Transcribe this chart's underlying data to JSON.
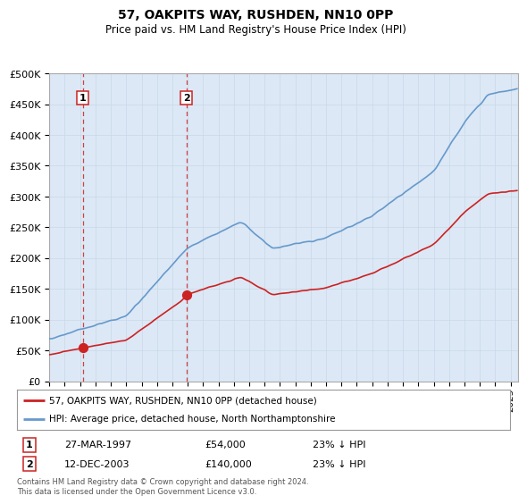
{
  "title": "57, OAKPITS WAY, RUSHDEN, NN10 0PP",
  "subtitle": "Price paid vs. HM Land Registry's House Price Index (HPI)",
  "legend_line1": "57, OAKPITS WAY, RUSHDEN, NN10 0PP (detached house)",
  "legend_line2": "HPI: Average price, detached house, North Northamptonshire",
  "footnote": "Contains HM Land Registry data © Crown copyright and database right 2024.\nThis data is licensed under the Open Government Licence v3.0.",
  "transaction1_date": "27-MAR-1997",
  "transaction1_price": 54000,
  "transaction1_label": "23% ↓ HPI",
  "transaction2_date": "12-DEC-2003",
  "transaction2_price": 140000,
  "transaction2_label": "23% ↓ HPI",
  "hpi_color": "#6699cc",
  "price_color": "#cc2222",
  "background_color": "#dce8f5",
  "plot_bg_color": "#ffffff",
  "ylim": [
    0,
    500000
  ],
  "yticks": [
    0,
    50000,
    100000,
    150000,
    200000,
    250000,
    300000,
    350000,
    400000,
    450000,
    500000
  ],
  "xstart_year": 1995,
  "xend_year": 2025
}
